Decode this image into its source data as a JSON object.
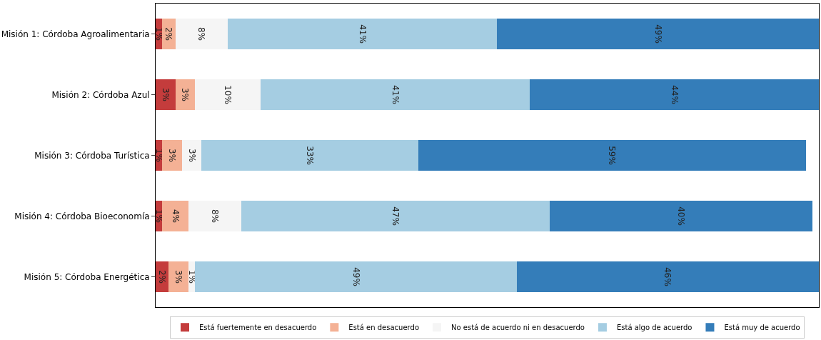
{
  "chart_data": {
    "type": "bar",
    "orientation": "horizontal",
    "stacked": true,
    "categories": [
      "Misión 1: Córdoba Agroalimentaria",
      "Misión 2: Córdoba Azul",
      "Misión 3: Córdoba Turística",
      "Misión 4: Córdoba Bioeconomía",
      "Misión 5: Córdoba Energética"
    ],
    "series": [
      {
        "name": "Está fuertemente en desacuerdo",
        "color": "#c43c3c",
        "values": [
          1,
          3,
          1,
          1,
          2
        ],
        "value_labels": [
          "1%",
          "3%",
          "1%",
          "1%",
          "2%"
        ]
      },
      {
        "name": "Está en desacuerdo",
        "color": "#f4b195",
        "values": [
          2,
          3,
          3,
          4,
          3
        ],
        "value_labels": [
          "2%",
          "3%",
          "3%",
          "4%",
          "3%"
        ]
      },
      {
        "name": "No está de acuerdo ni en desacuerdo",
        "color": "#f5f5f5",
        "values": [
          8,
          10,
          3,
          8,
          1
        ],
        "value_labels": [
          "8%",
          "10%",
          "3%",
          "8%",
          "1%"
        ]
      },
      {
        "name": "Está algo de acuerdo",
        "color": "#a5cde2",
        "values": [
          41,
          41,
          33,
          47,
          49
        ],
        "value_labels": [
          "41%",
          "41%",
          "33%",
          "47%",
          "49%"
        ]
      },
      {
        "name": "Está muy de acuerdo",
        "color": "#347db9",
        "values": [
          49,
          44,
          59,
          40,
          46
        ],
        "value_labels": [
          "49%",
          "44%",
          "59%",
          "40%",
          "46%"
        ]
      }
    ],
    "xlim": [
      0,
      101
    ],
    "tick_labels": "y",
    "legend": "bottom"
  }
}
